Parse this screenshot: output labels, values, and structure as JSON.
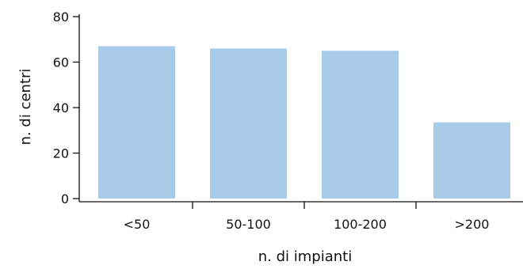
{
  "chart_data": {
    "type": "bar",
    "title": "",
    "xlabel": "n. di impianti",
    "ylabel": "n. di centri",
    "categories": [
      "<50",
      "50-100",
      "100-200",
      ">200"
    ],
    "values": [
      67,
      66,
      65,
      33.5
    ],
    "ylim": [
      0,
      80
    ],
    "yticks": [
      0,
      20,
      40,
      60,
      80
    ],
    "grid": false,
    "legend": "none",
    "bar_color": "#a8cbea",
    "axis_color": "#111111"
  }
}
